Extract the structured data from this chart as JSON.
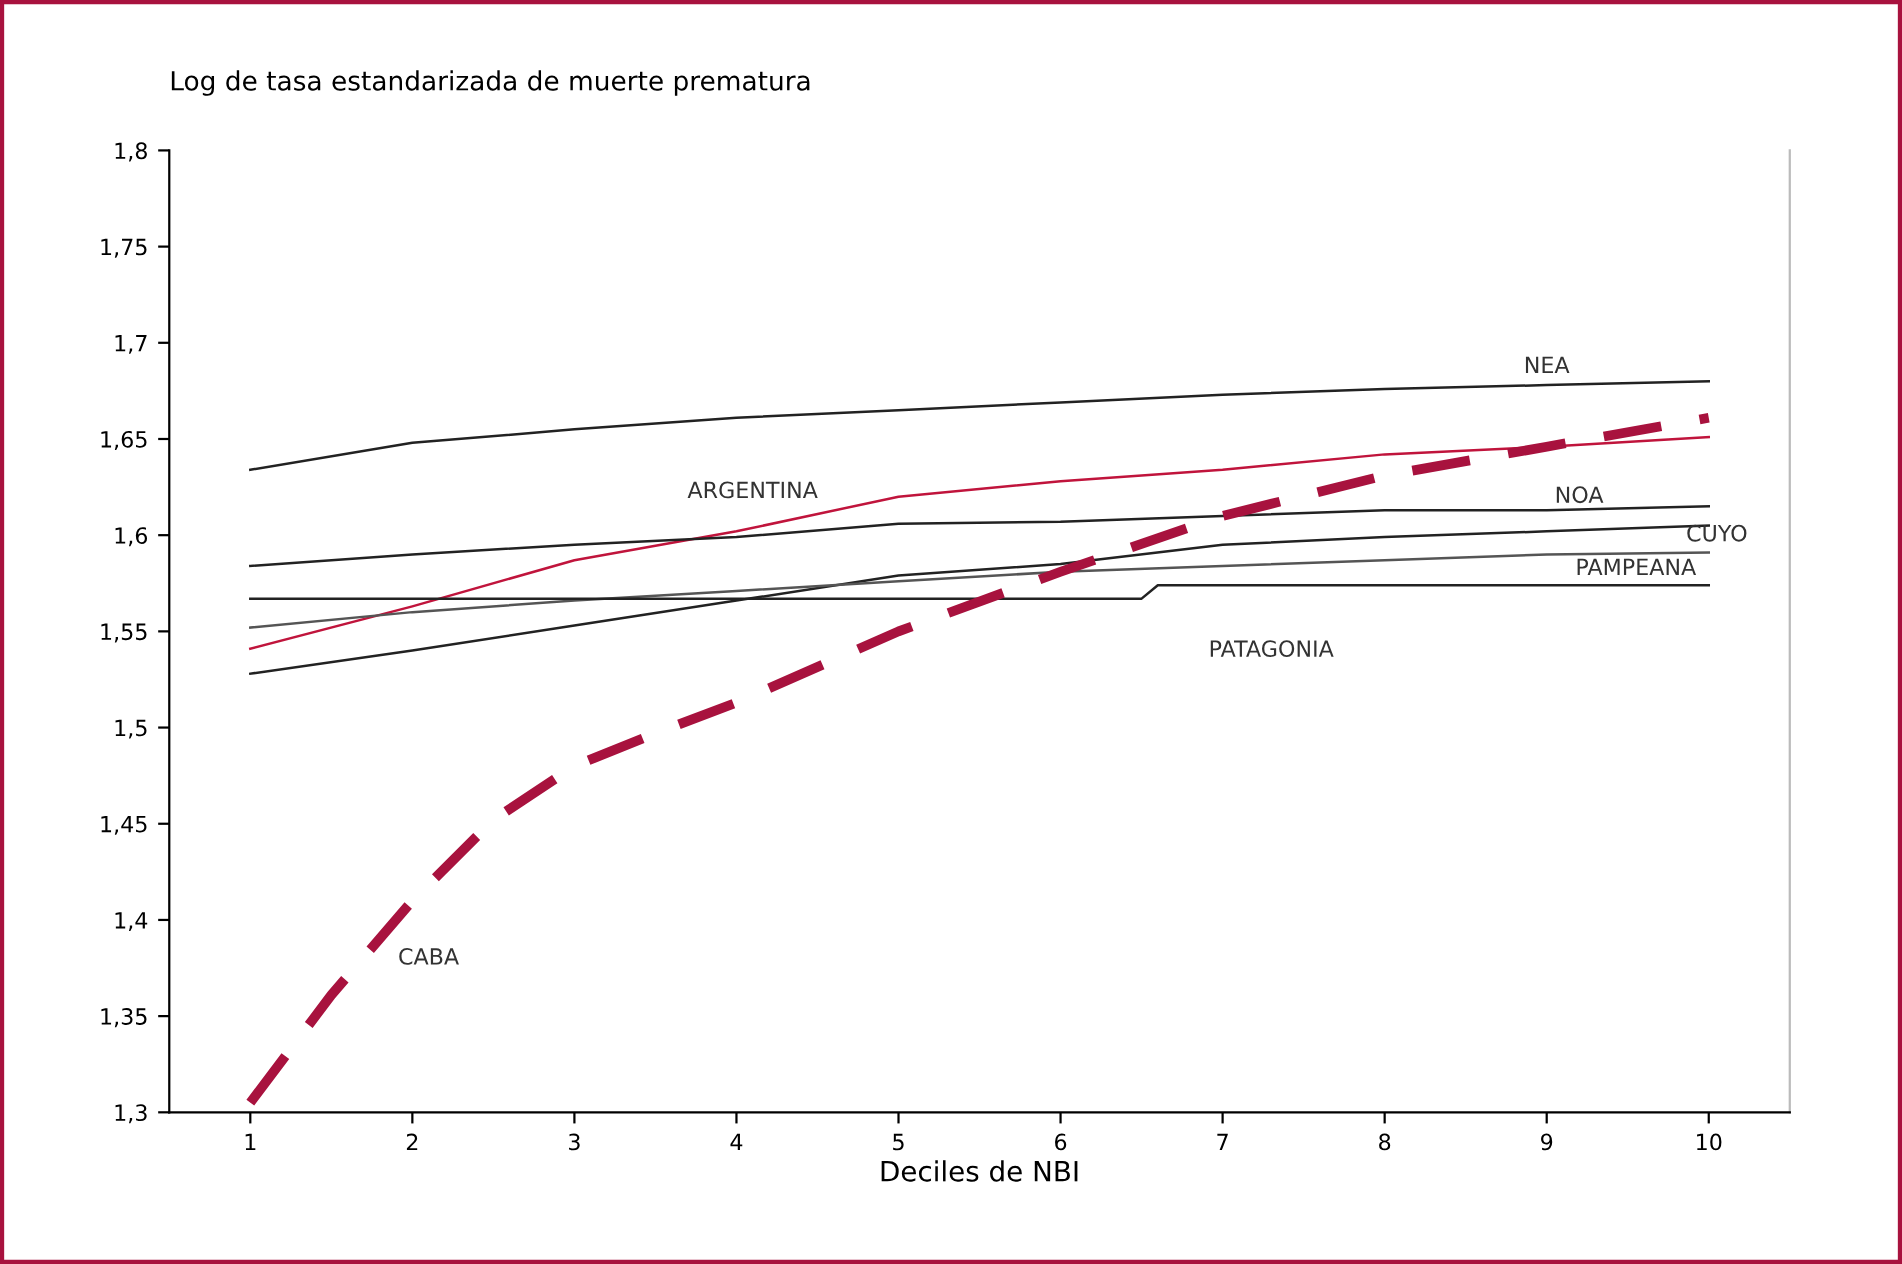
{
  "chart_data": {
    "type": "line",
    "ylabel": "Log de tasa estandarizada de muerte prematura",
    "xlabel": "Deciles de NBI",
    "xlim": [
      0.5,
      10.5
    ],
    "xticks": [
      1,
      2,
      3,
      4,
      5,
      6,
      7,
      8,
      9,
      10
    ],
    "ylim": [
      1.3,
      1.8
    ],
    "yticks": [
      {
        "value": 1.3,
        "label": "1,3"
      },
      {
        "value": 1.35,
        "label": "1,35"
      },
      {
        "value": 1.4,
        "label": "1,4"
      },
      {
        "value": 1.45,
        "label": "1,45"
      },
      {
        "value": 1.5,
        "label": "1,5"
      },
      {
        "value": 1.55,
        "label": "1,55"
      },
      {
        "value": 1.6,
        "label": "1,6"
      },
      {
        "value": 1.65,
        "label": "1,65"
      },
      {
        "value": 1.7,
        "label": "1,7"
      },
      {
        "value": 1.75,
        "label": "1,75"
      },
      {
        "value": 1.8,
        "label": "1,8"
      }
    ],
    "grid": false,
    "legend": false,
    "marker": "none",
    "series": [
      {
        "name": "NEA",
        "color": "#222222",
        "x": [
          1,
          2,
          3,
          4,
          5,
          6,
          7,
          8,
          9,
          10
        ],
        "values": [
          1.634,
          1.648,
          1.655,
          1.661,
          1.665,
          1.669,
          1.673,
          1.676,
          1.678,
          1.68
        ]
      },
      {
        "name": "ARGENTINA",
        "color": "#c0143c",
        "x": [
          1,
          2,
          3,
          4,
          5,
          6,
          7,
          8,
          9,
          10
        ],
        "values": [
          1.541,
          1.563,
          1.587,
          1.602,
          1.62,
          1.628,
          1.634,
          1.642,
          1.646,
          1.651
        ]
      },
      {
        "name": "NOA",
        "color": "#222222",
        "x": [
          1,
          2,
          3,
          4,
          5,
          6,
          7,
          8,
          9,
          10
        ],
        "values": [
          1.584,
          1.59,
          1.595,
          1.599,
          1.606,
          1.607,
          1.61,
          1.613,
          1.613,
          1.615
        ]
      },
      {
        "name": "CUYO",
        "color": "#222222",
        "x": [
          1,
          2,
          3,
          4,
          5,
          6,
          7,
          8,
          9,
          10
        ],
        "values": [
          1.528,
          1.54,
          1.553,
          1.566,
          1.579,
          1.585,
          1.595,
          1.599,
          1.602,
          1.605
        ]
      },
      {
        "name": "PAMPEANA",
        "color": "#555555",
        "x": [
          1,
          2,
          3,
          4,
          5,
          6,
          7,
          8,
          9,
          10
        ],
        "values": [
          1.552,
          1.56,
          1.566,
          1.571,
          1.576,
          1.581,
          1.584,
          1.587,
          1.59,
          1.591
        ]
      },
      {
        "name": "PATAGONIA",
        "color": "#222222",
        "x": [
          1,
          6.5,
          6.6,
          10
        ],
        "values": [
          1.567,
          1.567,
          1.574,
          1.574
        ]
      },
      {
        "name": "CABA",
        "color": "#a8123e",
        "line_style": "dashed",
        "x": [
          1,
          1.5,
          2,
          2.5,
          3,
          3.5,
          4,
          5,
          6,
          7,
          8,
          9,
          10
        ],
        "values": [
          1.305,
          1.361,
          1.41,
          1.452,
          1.48,
          1.497,
          1.513,
          1.55,
          1.581,
          1.61,
          1.631,
          1.646,
          1.661
        ]
      }
    ]
  }
}
